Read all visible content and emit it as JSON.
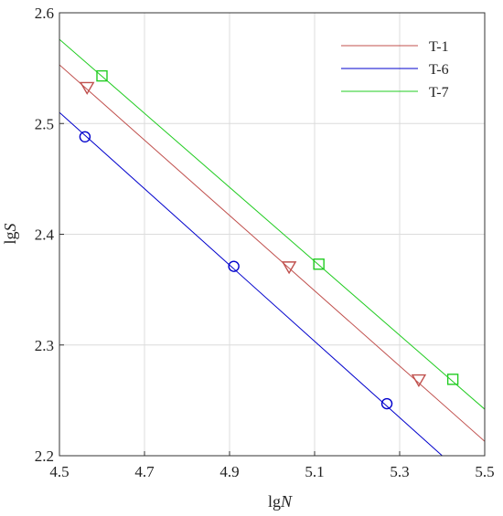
{
  "chart_data": {
    "type": "scatter",
    "xlabel": {
      "prefix": "lg",
      "var": "N"
    },
    "ylabel": {
      "prefix": "lg",
      "var": "S"
    },
    "xlim": [
      4.5,
      5.5
    ],
    "ylim": [
      2.2,
      2.6
    ],
    "xticks": [
      "4.5",
      "4.7",
      "4.9",
      "5.1",
      "5.3",
      "5.5"
    ],
    "yticks": [
      "2.2",
      "2.3",
      "2.4",
      "2.5",
      "2.6"
    ],
    "grid": true,
    "legend_position": "top-right",
    "series": [
      {
        "name": "T-1",
        "color": "#c0504d",
        "marker": "triangle-down",
        "points": [
          [
            4.565,
            2.532
          ],
          [
            5.04,
            2.37
          ],
          [
            5.345,
            2.268
          ]
        ],
        "fit": [
          [
            4.5,
            2.553
          ],
          [
            5.5,
            2.213
          ]
        ]
      },
      {
        "name": "T-6",
        "color": "#0000cc",
        "marker": "circle",
        "points": [
          [
            4.56,
            2.488
          ],
          [
            4.91,
            2.371
          ],
          [
            5.27,
            2.247
          ]
        ],
        "fit": [
          [
            4.5,
            2.51
          ],
          [
            5.4,
            2.2
          ]
        ]
      },
      {
        "name": "T-7",
        "color": "#22cc22",
        "marker": "square",
        "points": [
          [
            4.6,
            2.543
          ],
          [
            5.11,
            2.373
          ],
          [
            5.425,
            2.269
          ]
        ],
        "fit": [
          [
            4.5,
            2.576
          ],
          [
            5.5,
            2.242
          ]
        ]
      }
    ]
  }
}
